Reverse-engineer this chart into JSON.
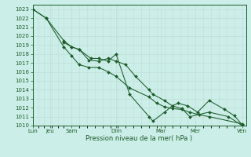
{
  "background_color": "#cceee8",
  "grid_color_major": "#aaddcc",
  "grid_color_minor": "#ddeeee",
  "line_color": "#1a5c28",
  "title": "Pression niveau de la mer( hPa )",
  "ylim": [
    1010,
    1023.5
  ],
  "xlim": [
    0.0,
    11.0
  ],
  "major_xtick_pos": [
    0.0,
    0.9,
    2.0,
    4.3,
    6.6,
    8.4,
    10.8
  ],
  "major_xtick_labels": [
    "Lun",
    "Jeu",
    "Sam",
    "Dim",
    "Mar",
    "Mer",
    "Ven"
  ],
  "line1_x": [
    0.0,
    0.7,
    1.6,
    2.0,
    2.4,
    3.0,
    3.4,
    3.9,
    4.3,
    5.0,
    6.0,
    6.2,
    6.8,
    7.2,
    7.7,
    8.1,
    9.1,
    10.1,
    10.8
  ],
  "line1_y": [
    1023.0,
    1022.0,
    1019.5,
    1018.8,
    1018.5,
    1017.5,
    1017.5,
    1017.2,
    1018.0,
    1013.5,
    1011.0,
    1010.5,
    1011.5,
    1012.2,
    1011.9,
    1011.0,
    1011.5,
    1011.0,
    1010.0
  ],
  "line2_x": [
    1.6,
    2.0,
    2.4,
    2.9,
    3.4,
    3.9,
    4.3,
    4.8,
    5.3,
    6.0,
    6.2,
    6.8,
    7.2,
    7.5,
    8.0,
    8.5,
    9.1,
    9.9,
    10.4,
    10.8
  ],
  "line2_y": [
    1019.3,
    1018.8,
    1018.5,
    1017.3,
    1017.2,
    1017.5,
    1017.2,
    1016.8,
    1015.5,
    1014.0,
    1013.5,
    1012.8,
    1012.2,
    1012.5,
    1012.2,
    1011.5,
    1012.8,
    1011.8,
    1011.1,
    1010.1
  ],
  "line3_x": [
    0.0,
    0.7,
    1.6,
    2.0,
    2.4,
    2.9,
    3.4,
    3.9,
    4.3,
    5.0,
    6.0,
    6.4,
    6.8,
    7.2,
    7.7,
    8.1,
    8.6,
    9.1,
    10.8
  ],
  "line3_y": [
    1023.0,
    1022.0,
    1018.8,
    1017.8,
    1016.8,
    1016.5,
    1016.5,
    1016.0,
    1015.5,
    1014.2,
    1013.2,
    1012.5,
    1012.1,
    1011.9,
    1011.8,
    1011.5,
    1011.2,
    1011.0,
    1010.2
  ]
}
